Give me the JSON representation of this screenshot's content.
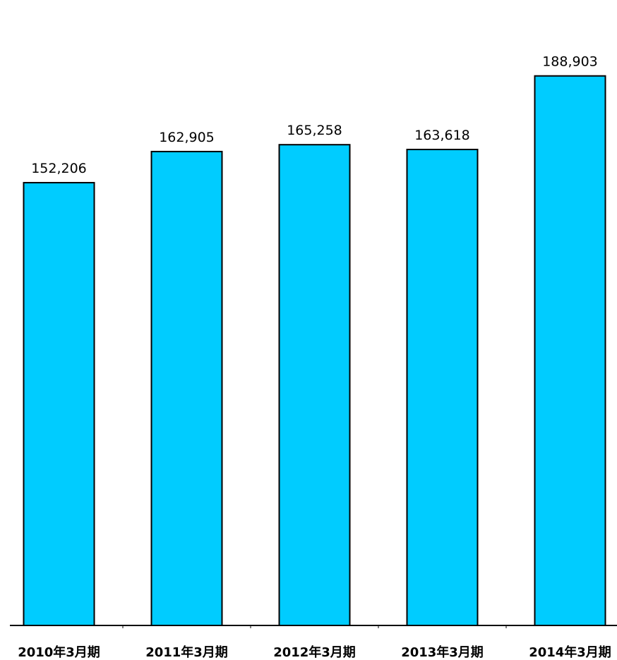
{
  "chart_data": {
    "type": "bar",
    "categories": [
      "2010年3月期",
      "2011年3月期",
      "2012年3月期",
      "2013年3月期",
      "2014年3月期"
    ],
    "values": [
      152206,
      162905,
      165258,
      163618,
      188903
    ],
    "value_labels": [
      "152,206",
      "162,905",
      "165,258",
      "163,618",
      "188,903"
    ],
    "ylim": [
      0,
      215000
    ],
    "grid": false,
    "legend": "none",
    "bar_color": "#00ccff",
    "bar_edge_color": "#000000"
  }
}
